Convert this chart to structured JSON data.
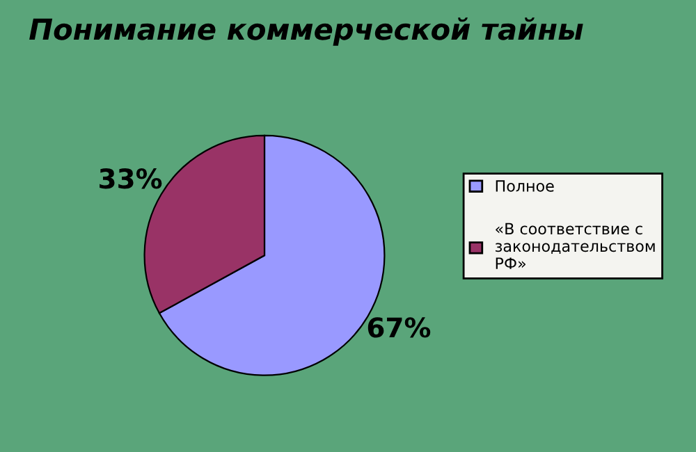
{
  "chart_data": {
    "type": "pie",
    "title": "Понимание коммерческой тайны",
    "categories": [
      "Полное",
      "«В соответствие с законодательством РФ»"
    ],
    "values": [
      67,
      33
    ],
    "colors": [
      "#9999ff",
      "#993366"
    ],
    "value_labels": [
      "67%",
      "33%"
    ],
    "legend": "right"
  }
}
